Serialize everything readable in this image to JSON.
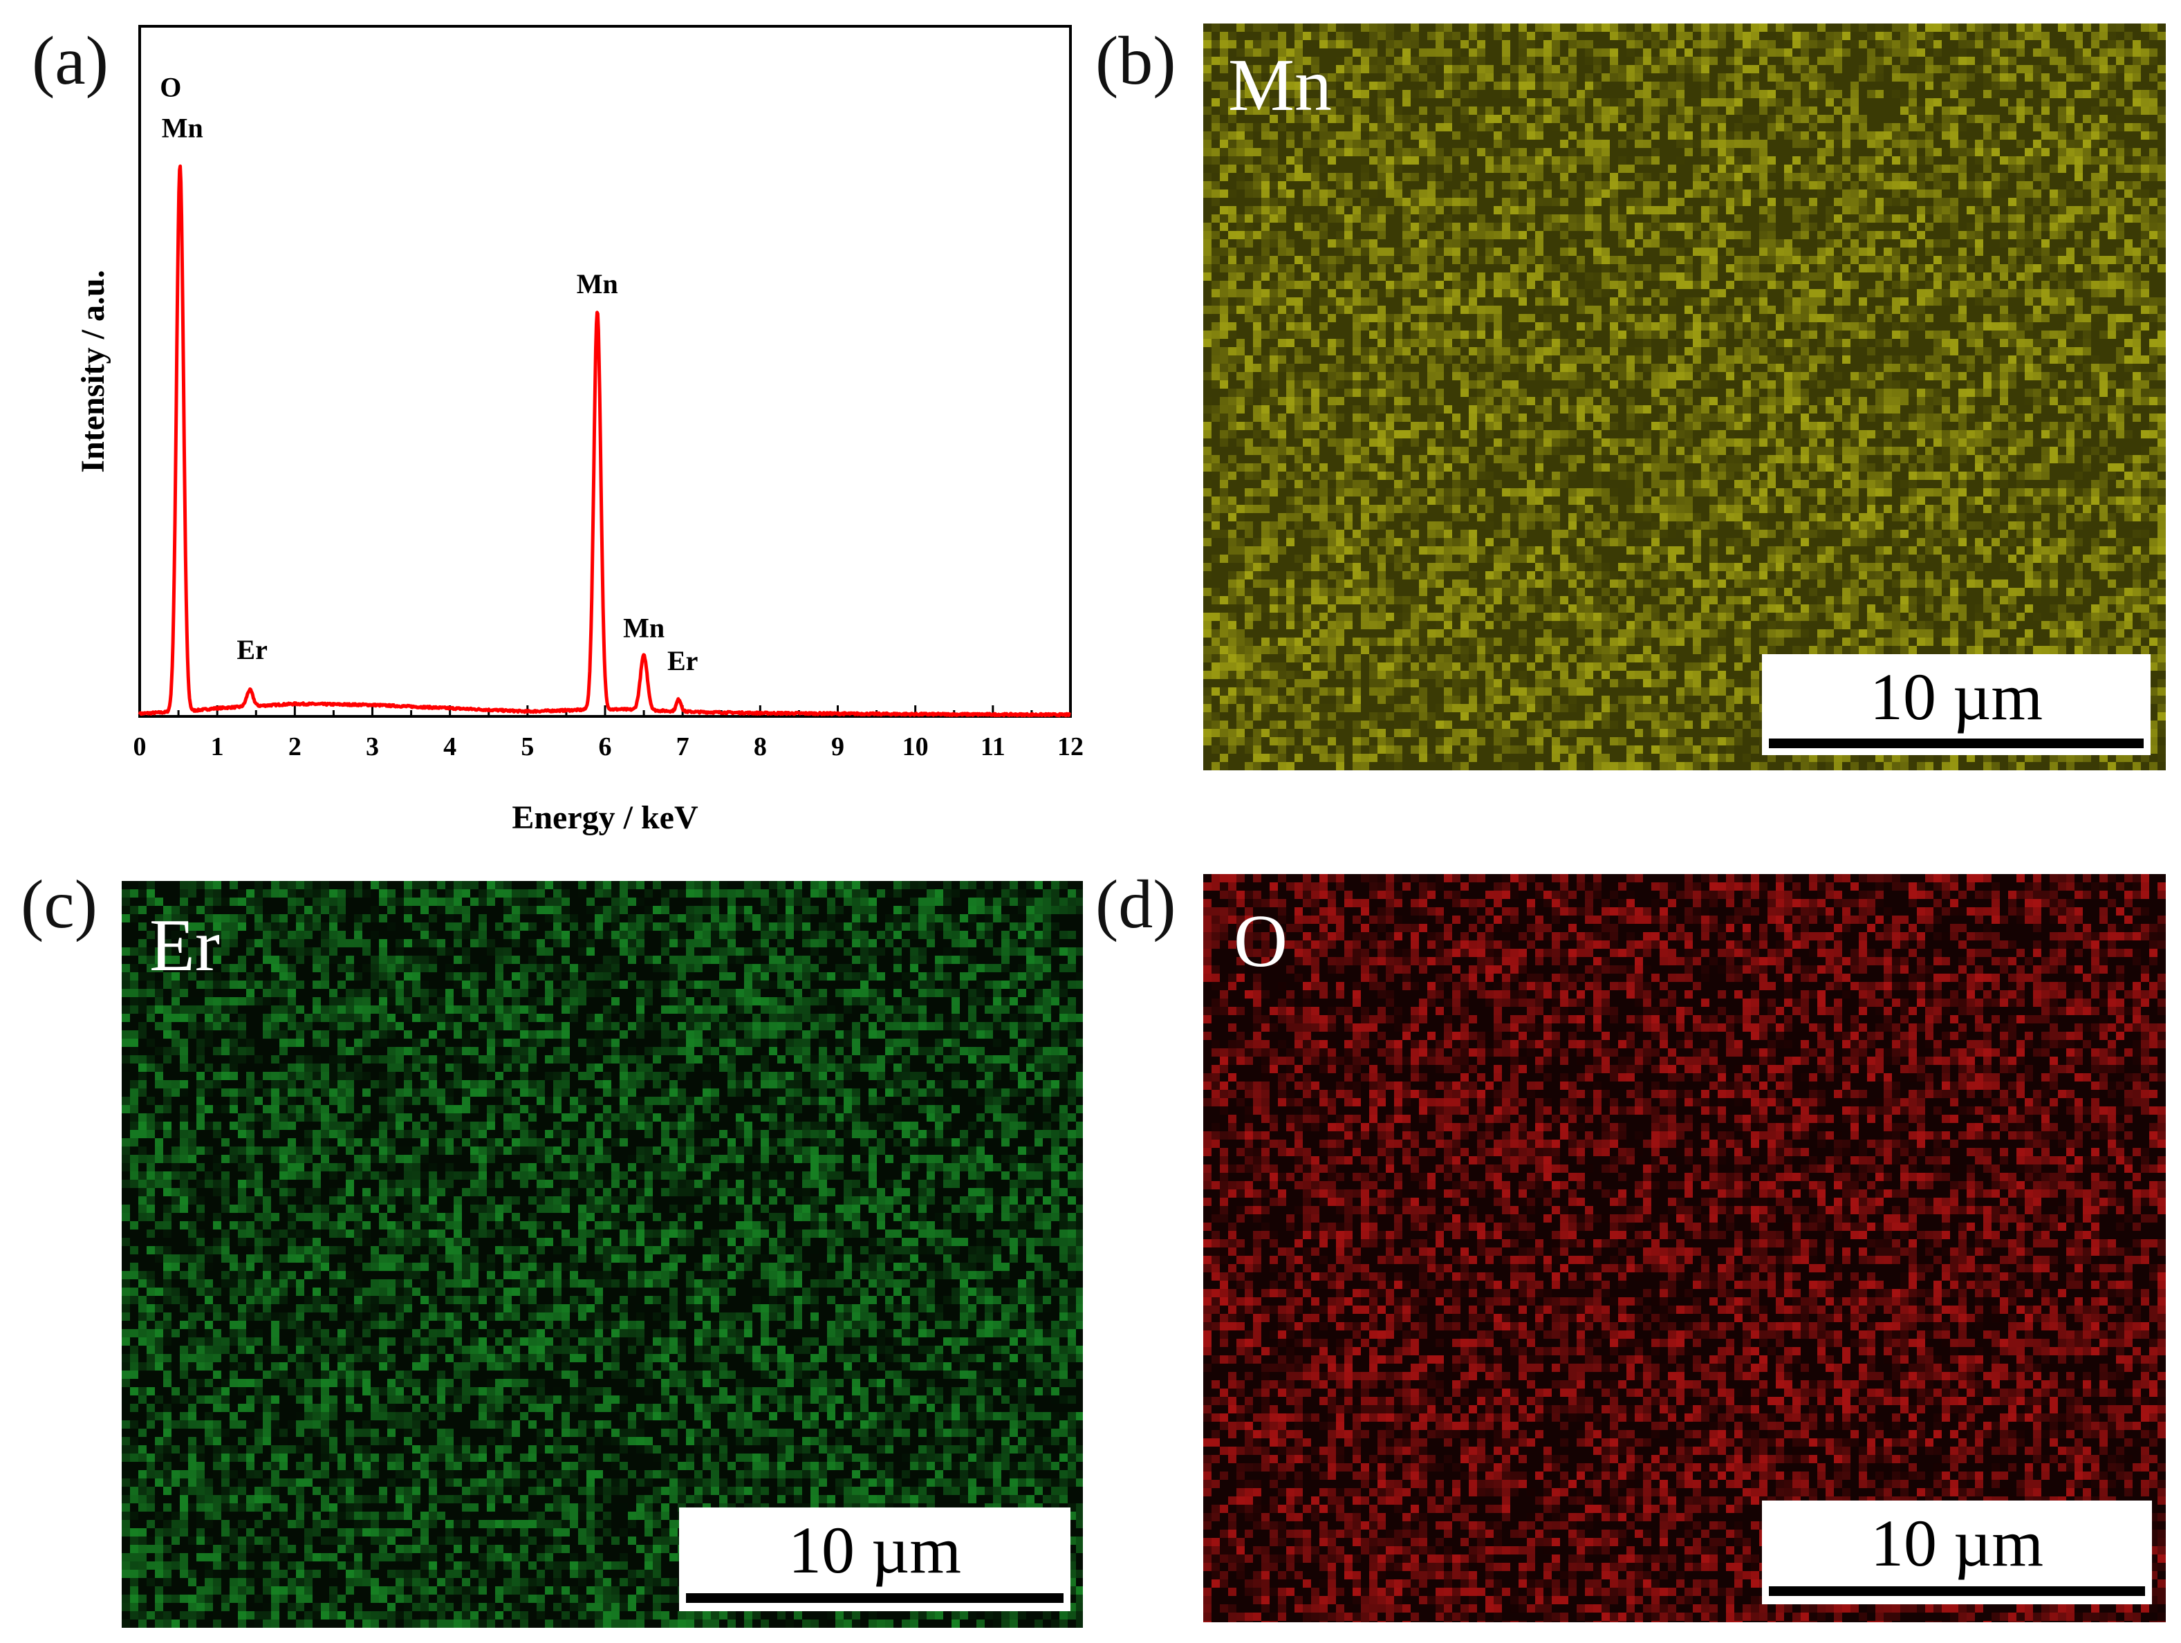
{
  "panels": {
    "a": {
      "letter": "(a)"
    },
    "b": {
      "letter": "(b)",
      "element": "Mn",
      "scale": "10 µm",
      "color": "#c8c818"
    },
    "c": {
      "letter": "(c)",
      "element": "Er",
      "scale": "10 µm",
      "color": "#1fb030"
    },
    "d": {
      "letter": "(d)",
      "element": "O",
      "scale": "10 µm",
      "color": "#e01818"
    }
  },
  "chart_data": {
    "type": "line",
    "title": "",
    "xlabel": "Energy / keV",
    "ylabel": "Intensity / a.u.",
    "xlim": [
      0,
      12
    ],
    "ylim": [
      0,
      100
    ],
    "xticks": [
      0,
      1,
      2,
      3,
      4,
      5,
      6,
      7,
      8,
      9,
      10,
      11,
      12
    ],
    "grid": false,
    "line_color": "#ff0000",
    "peaks": [
      {
        "x": 0.52,
        "y": 100,
        "width": 0.045
      },
      {
        "x": 1.42,
        "y": 3.0,
        "width": 0.04
      },
      {
        "x": 5.9,
        "y": 73,
        "width": 0.045
      },
      {
        "x": 6.5,
        "y": 10,
        "width": 0.045
      },
      {
        "x": 6.95,
        "y": 2.2,
        "width": 0.03
      }
    ],
    "baseline": [
      [
        0,
        0.5
      ],
      [
        0.65,
        1.0
      ],
      [
        1.0,
        1.5
      ],
      [
        2.0,
        2.3
      ],
      [
        3.0,
        2.1
      ],
      [
        4.0,
        1.5
      ],
      [
        5.0,
        0.9
      ],
      [
        5.7,
        1.2
      ],
      [
        6.2,
        1.3
      ],
      [
        7.2,
        0.8
      ],
      [
        8.0,
        0.6
      ],
      [
        10.0,
        0.4
      ],
      [
        12.0,
        0.3
      ]
    ],
    "annotations": [
      {
        "text": "O",
        "x": 0.4,
        "y": 113.5
      },
      {
        "text": "Mn",
        "x": 0.55,
        "y": 106
      },
      {
        "text": "Er",
        "x": 1.45,
        "y": 10.5
      },
      {
        "text": "Mn",
        "x": 5.9,
        "y": 77.5
      },
      {
        "text": "Mn",
        "x": 6.5,
        "y": 14.5
      },
      {
        "text": "Er",
        "x": 7.0,
        "y": 8.5
      }
    ]
  }
}
